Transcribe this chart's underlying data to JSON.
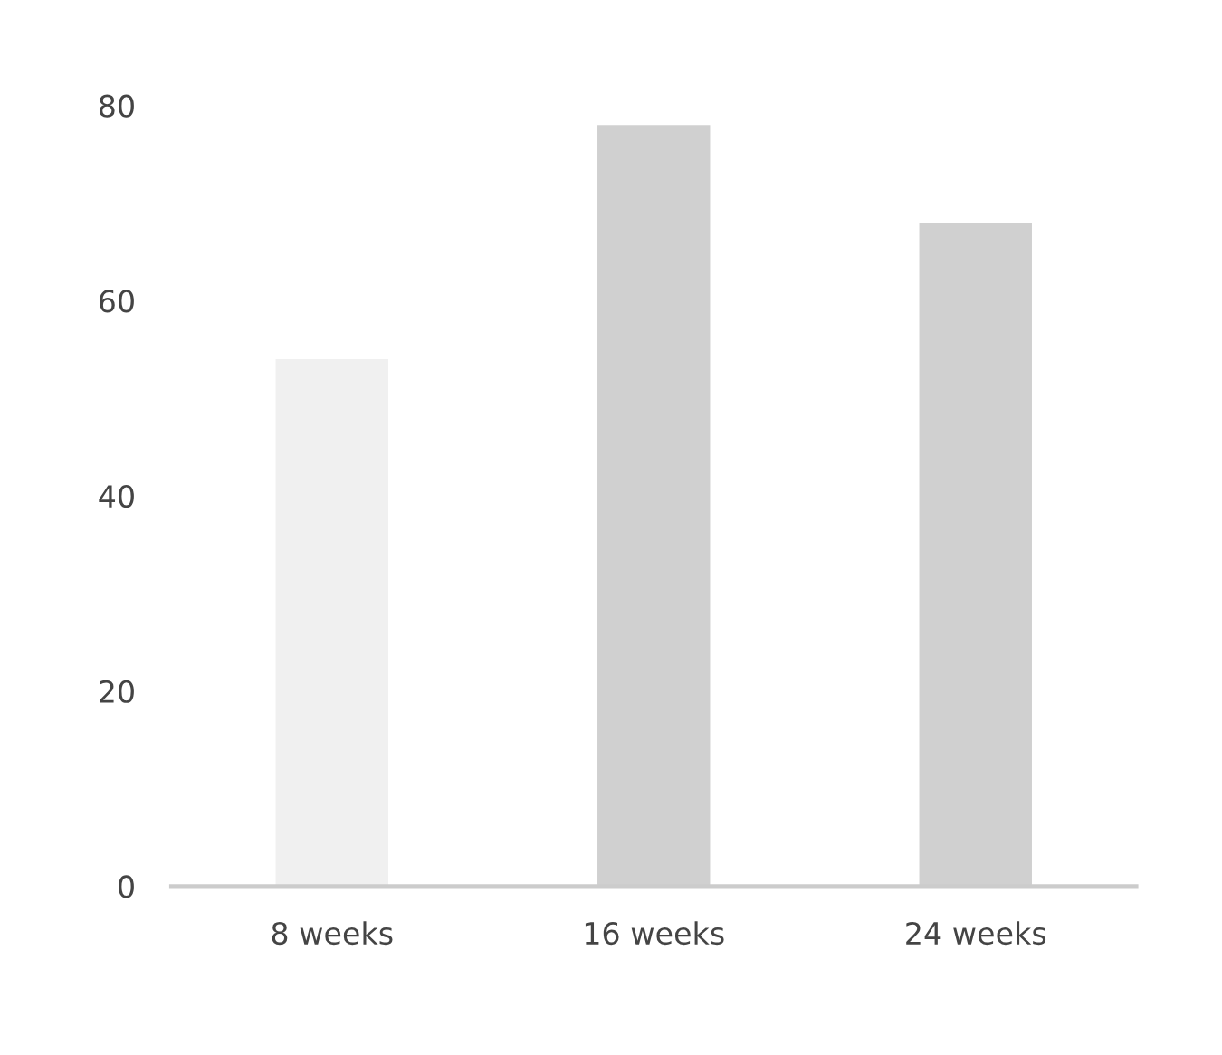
{
  "chart_data": {
    "type": "bar",
    "categories": [
      "8 weeks",
      "16 weeks",
      "24 weeks"
    ],
    "values": [
      54,
      78,
      68
    ],
    "colors": [
      "#f0f0f0",
      "#d0d0d0",
      "#d0d0d0"
    ],
    "ylim": [
      0,
      80
    ],
    "yticks": [
      0,
      20,
      40,
      60,
      80
    ]
  }
}
